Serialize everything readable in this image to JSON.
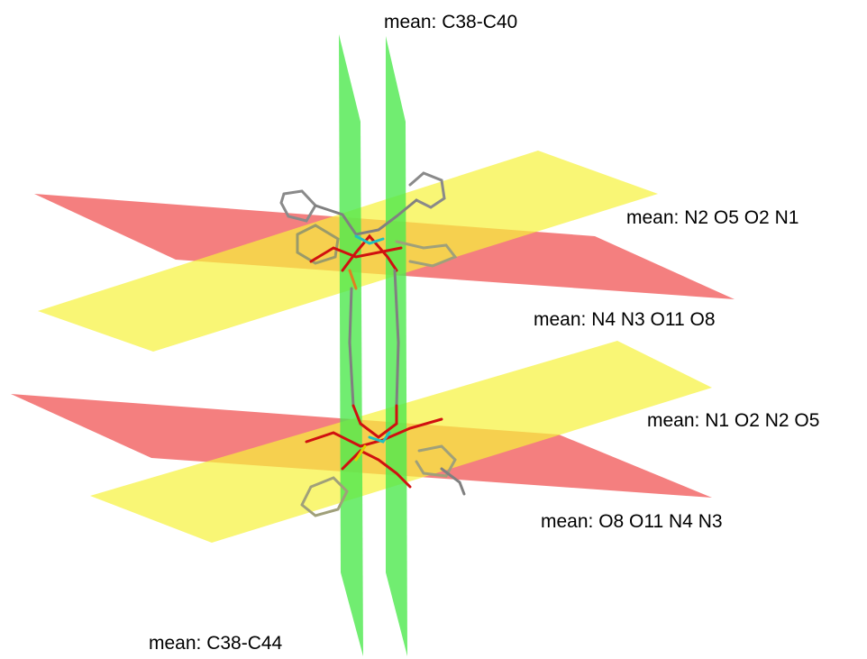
{
  "labels": [
    "mean: C38-C40",
    "mean: N2 O5 O2 N1",
    "mean: N4 N3 O11 O8",
    "mean: N1 O2 N2 O5",
    "mean: O8 O11 N4 N3",
    "mean: C38-C44"
  ]
}
